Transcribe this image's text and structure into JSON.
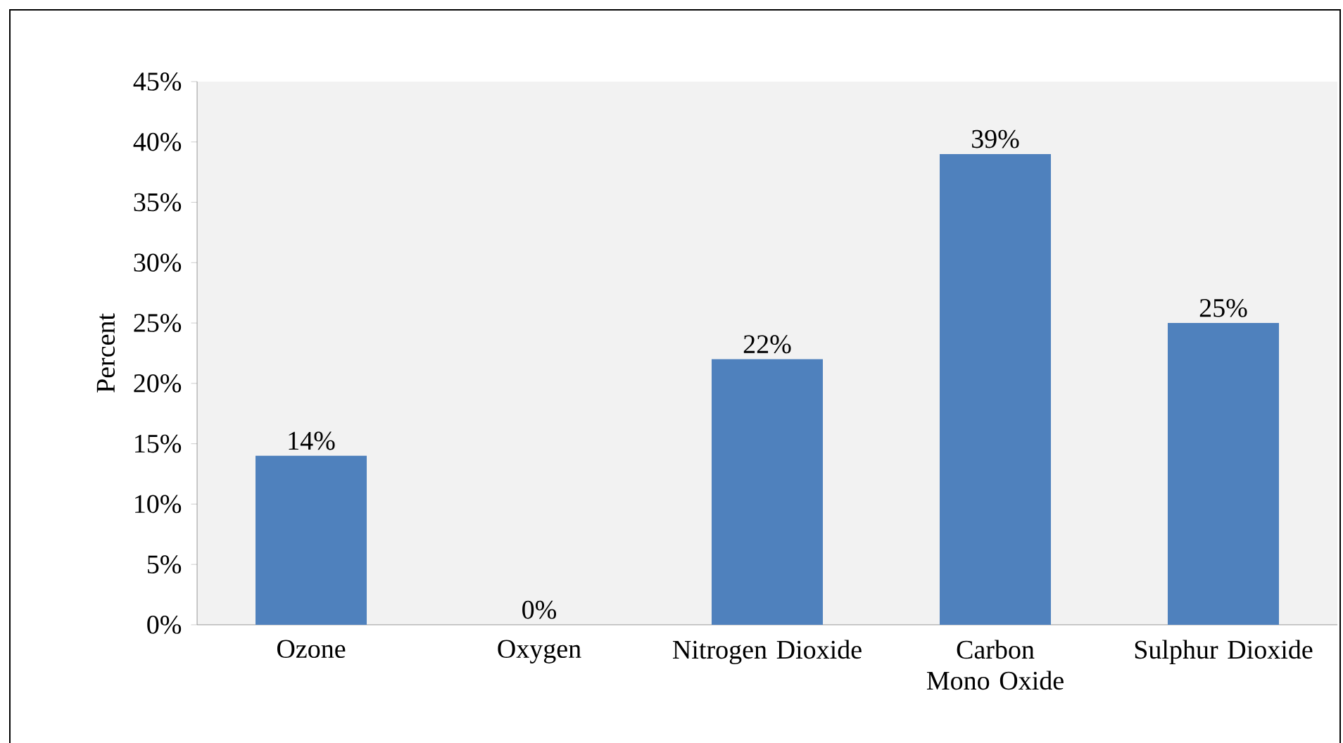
{
  "chart_data": {
    "type": "bar",
    "ylabel": "Percent",
    "categories": [
      "Ozone",
      "Oxygen",
      "Nitrogen Dioxide",
      "Carbon Mono Oxide",
      "Sulphur Dioxide"
    ],
    "values": [
      14,
      0,
      22,
      39,
      25
    ],
    "color": "#4f81bd",
    "value_labels": [
      "14%",
      "0%",
      "22%",
      "39%",
      "25%"
    ],
    "ylim": [
      0,
      45
    ],
    "yticks": [
      {
        "value": 0,
        "label": "0%"
      },
      {
        "value": 5,
        "label": "5%"
      },
      {
        "value": 10,
        "label": "10%"
      },
      {
        "value": 15,
        "label": "15%"
      },
      {
        "value": 20,
        "label": "20%"
      },
      {
        "value": 25,
        "label": "25%"
      },
      {
        "value": 30,
        "label": "30%"
      },
      {
        "value": 35,
        "label": "35%"
      },
      {
        "value": 40,
        "label": "40%"
      },
      {
        "value": 45,
        "label": "45%"
      }
    ]
  }
}
